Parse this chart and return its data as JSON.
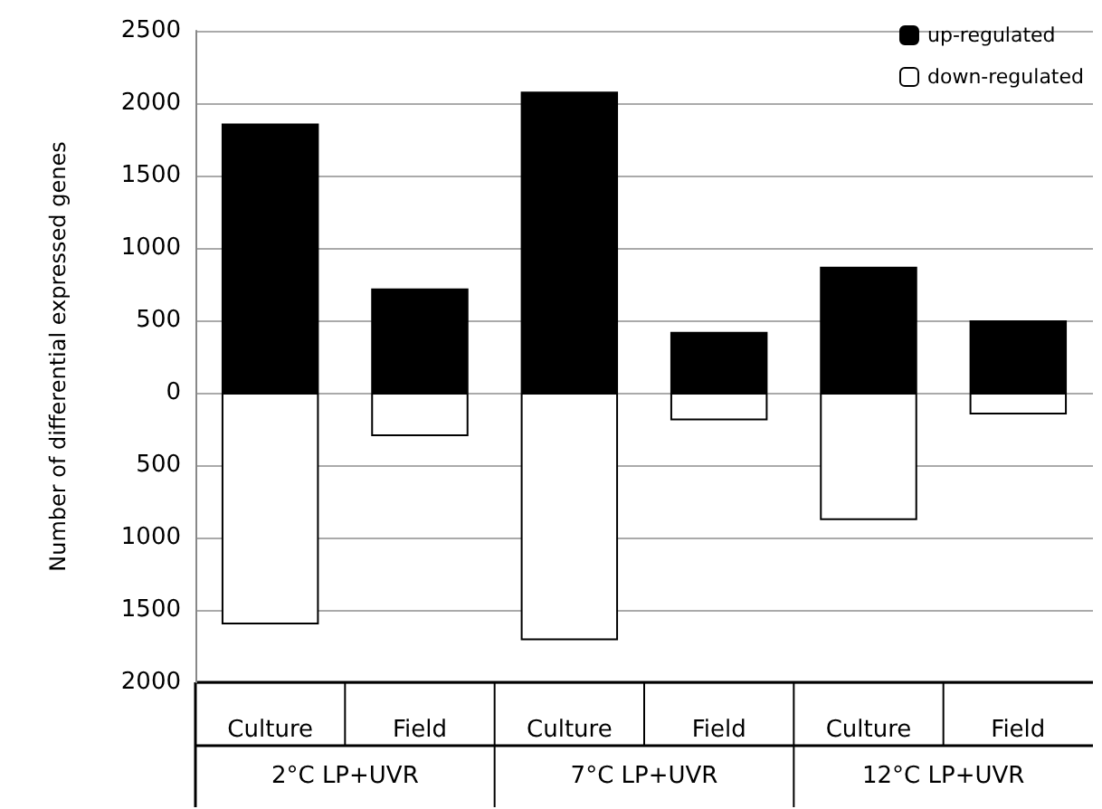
{
  "chart_data": {
    "type": "bar",
    "ylabel": "Number of differential expressed genes",
    "categories": [
      "Culture",
      "Field",
      "Culture",
      "Field",
      "Culture",
      "Field"
    ],
    "annotations": [
      "2°C LP+UVR",
      "7°C LP+UVR",
      "12°C LP+UVR"
    ],
    "series": [
      {
        "name": "up-regulated",
        "color": "#000000",
        "values": [
          1860,
          720,
          2080,
          420,
          870,
          500
        ]
      },
      {
        "name": "down-regulated",
        "color": "#ffffff",
        "values": [
          -1600,
          -300,
          -1710,
          -190,
          -880,
          -150
        ]
      }
    ],
    "stacked": true,
    "ylim": [
      -2000,
      2500
    ],
    "yticks": [
      {
        "value": -2000,
        "label": "2000"
      },
      {
        "value": -1500,
        "label": "1500"
      },
      {
        "value": -1000,
        "label": "1000"
      },
      {
        "value": -500,
        "label": "500"
      },
      0,
      500,
      1000,
      1500,
      2000,
      2500
    ],
    "grid": "y",
    "legend": "top right"
  }
}
